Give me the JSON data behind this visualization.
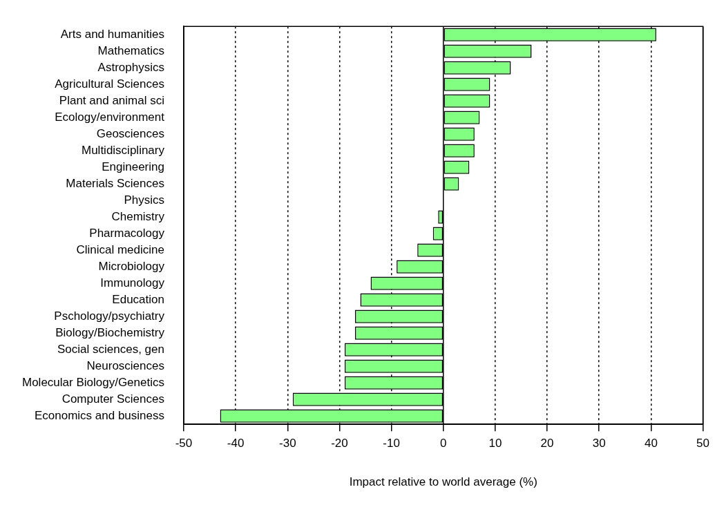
{
  "chart_data": {
    "type": "bar",
    "orientation": "horizontal",
    "xlabel": "Impact relative to world average (%)",
    "categories": [
      "Arts and humanities",
      "Mathematics",
      "Astrophysics",
      "Agricultural Sciences",
      "Plant and animal sci",
      "Ecology/environment",
      "Geosciences",
      "Multidisciplinary",
      "Engineering",
      "Materials Sciences",
      "Physics",
      "Chemistry",
      "Pharmacology",
      "Clinical medicine",
      "Microbiology",
      "Immunology",
      "Education",
      "Pschology/psychiatry",
      "Biology/Biochemistry",
      "Social sciences, gen",
      "Neurosciences",
      "Molecular Biology/Genetics",
      "Computer Sciences",
      "Economics and business"
    ],
    "values": [
      41,
      17,
      13,
      9,
      9,
      7,
      6,
      6,
      5,
      3,
      0,
      -1,
      -2,
      -5,
      -9,
      -14,
      -16,
      -17,
      -17,
      -19,
      -19,
      -19,
      -29,
      -43
    ],
    "color": "#80ff80",
    "xlim": [
      -50,
      50
    ],
    "xticks": [
      -50,
      -40,
      -30,
      -20,
      -10,
      0,
      10,
      20,
      30,
      40,
      50
    ],
    "grid": "x",
    "legend": false
  }
}
